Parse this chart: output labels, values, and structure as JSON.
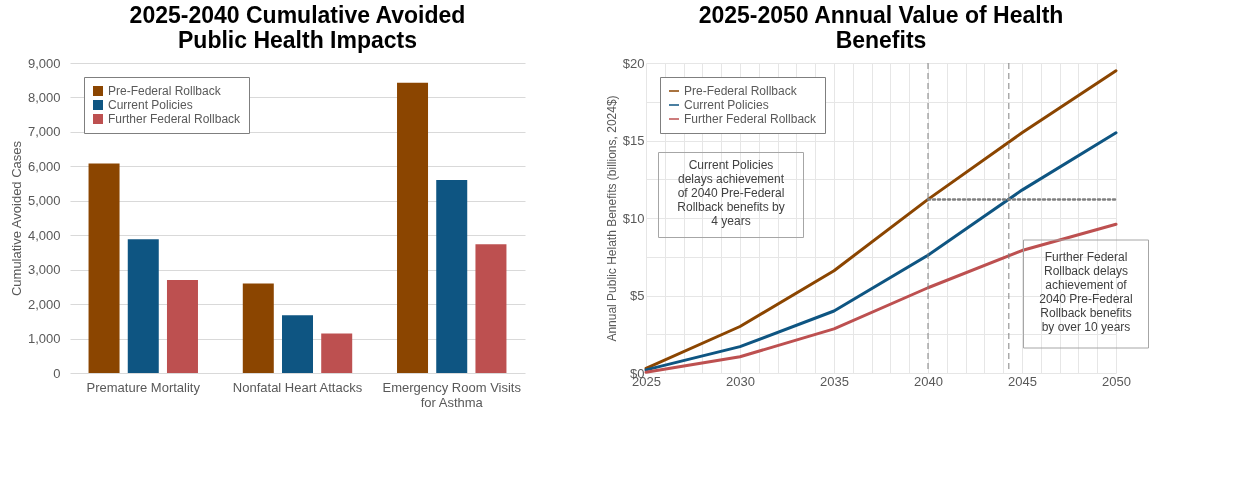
{
  "chart_data": [
    {
      "type": "bar",
      "title": "2025-2040 Cumulative Avoided Public Health Impacts",
      "ylabel": "Cumulative Avoided Cases",
      "categories": [
        "Premature Mortality",
        "Nonfatal Heart Attacks",
        "Emergency Room Visits for Asthma"
      ],
      "series": [
        {
          "name": "Pre-Federal Rollback",
          "color": "#8b4500",
          "values": [
            6080,
            2600,
            8430
          ]
        },
        {
          "name": "Current Policies",
          "color": "#0e5582",
          "values": [
            3880,
            1680,
            5600
          ]
        },
        {
          "name": "Further Federal Rollback",
          "color": "#bd5050",
          "values": [
            2700,
            1150,
            3740
          ]
        }
      ],
      "ylim": [
        0,
        9000
      ],
      "yticks": [
        {
          "value": 0,
          "label": "0"
        },
        {
          "value": 1000,
          "label": "1,000"
        },
        {
          "value": 2000,
          "label": "2,000"
        },
        {
          "value": 3000,
          "label": "3,000"
        },
        {
          "value": 4000,
          "label": "4,000"
        },
        {
          "value": 5000,
          "label": "5,000"
        },
        {
          "value": 6000,
          "label": "6,000"
        },
        {
          "value": 7000,
          "label": "7,000"
        },
        {
          "value": 8000,
          "label": "8,000"
        },
        {
          "value": 9000,
          "label": "9,000"
        }
      ],
      "grid": "y",
      "legend": "top left"
    },
    {
      "type": "line",
      "title": "2025-2050 Annual Value of Health Benefits",
      "ylabel": "Annual Public Helath Benefits (billions, 2024$)",
      "x": [
        2025,
        2030,
        2035,
        2040,
        2045,
        2050
      ],
      "series": [
        {
          "name": "Pre-Federal Rollback",
          "color": "#8b4500",
          "values": [
            0.3,
            3.0,
            6.6,
            11.2,
            15.5,
            19.5
          ]
        },
        {
          "name": "Current Policies",
          "color": "#0e5582",
          "values": [
            0.2,
            1.7,
            4.0,
            7.6,
            11.8,
            15.5
          ]
        },
        {
          "name": "Further Federal Rollback",
          "color": "#bd5050",
          "values": [
            0.05,
            1.05,
            2.85,
            5.5,
            7.9,
            9.6
          ]
        },
        {
          "type": "line",
          "color": "#7f7f7f",
          "line_style": "dotted",
          "x": [
            2040,
            2050
          ],
          "values": [
            11.2,
            11.2
          ]
        }
      ],
      "xlim": [
        2025,
        2050
      ],
      "xticks": [
        2025,
        {
          "value": 2026,
          "label": null
        },
        {
          "value": 2027,
          "label": null
        },
        {
          "value": 2028,
          "label": null
        },
        {
          "value": 2029,
          "label": null
        },
        2030,
        {
          "value": 2031,
          "label": null
        },
        {
          "value": 2032,
          "label": null
        },
        {
          "value": 2033,
          "label": null
        },
        {
          "value": 2034,
          "label": null
        },
        2035,
        {
          "value": 2036,
          "label": null
        },
        {
          "value": 2037,
          "label": null
        },
        {
          "value": 2038,
          "label": null
        },
        {
          "value": 2039,
          "label": null
        },
        2040,
        {
          "value": 2041,
          "label": null
        },
        {
          "value": 2042,
          "label": null
        },
        {
          "value": 2043,
          "label": null
        },
        {
          "value": 2044,
          "label": null
        },
        2045,
        {
          "value": 2046,
          "label": null
        },
        {
          "value": 2047,
          "label": null
        },
        {
          "value": 2048,
          "label": null
        },
        {
          "value": 2049,
          "label": null
        },
        2050
      ],
      "ylim": [
        0,
        20
      ],
      "yticks": [
        {
          "value": 0,
          "label": "$0"
        },
        {
          "value": 2.5,
          "label": null
        },
        {
          "value": 5,
          "label": "$5"
        },
        {
          "value": 7.5,
          "label": null
        },
        {
          "value": 10,
          "label": "$10"
        },
        {
          "value": 12.5,
          "label": null
        },
        {
          "value": 15,
          "label": "$15"
        },
        {
          "value": 17.5,
          "label": null
        },
        {
          "value": 20,
          "label": "$20"
        }
      ],
      "grid": true,
      "legend": "top left",
      "marker": "none",
      "line_style": "solid",
      "ref_lines": [
        {
          "axis": "x",
          "value": 2040,
          "label": null,
          "color": "#808080",
          "line_style": "dashed"
        },
        {
          "axis": "x",
          "value": 2044.3,
          "label": null,
          "color": "#808080",
          "line_style": "dashed"
        }
      ],
      "annotations": [
        "Current Policies delays achievement of 2040 Pre-Federal Rollback benefits by 4 years",
        "Further Federal Rollback delays achievement of 2040 Pre-Federal Rollback benefits by over 10 years"
      ]
    }
  ]
}
